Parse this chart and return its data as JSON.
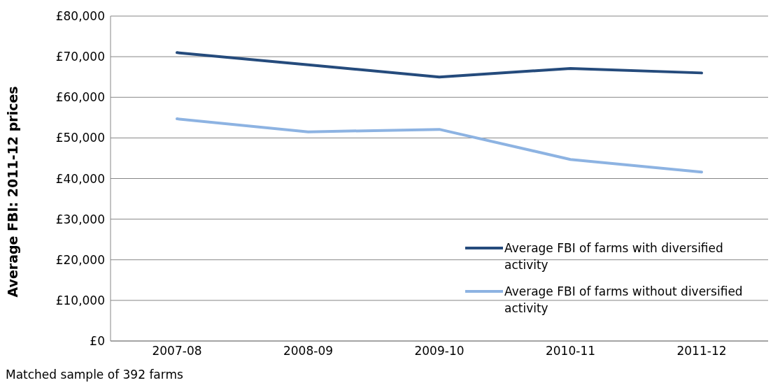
{
  "chart_data": {
    "type": "line",
    "ylabel": "Average FBI: 2011-12 prices",
    "categories": [
      "2007-08",
      "2008-09",
      "2009-10",
      "2010-11",
      "2011-12"
    ],
    "series": [
      {
        "name": "Average FBI of farms with diversified activity",
        "color": "#254b7c",
        "values": [
          71000,
          68000,
          65000,
          67100,
          66000
        ]
      },
      {
        "name": "Average FBI of farms without diversified activity",
        "color": "#8db3e2",
        "values": [
          54700,
          51500,
          52100,
          44700,
          41600
        ]
      }
    ],
    "ylim": [
      0,
      80000
    ],
    "yticks": [
      {
        "value": 0,
        "label": "£0"
      },
      {
        "value": 10000,
        "label": "£10,000"
      },
      {
        "value": 20000,
        "label": "£20,000"
      },
      {
        "value": 30000,
        "label": "£30,000"
      },
      {
        "value": 40000,
        "label": "£40,000"
      },
      {
        "value": 50000,
        "label": "£50,000"
      },
      {
        "value": 60000,
        "label": "£60,000"
      },
      {
        "value": 70000,
        "label": "£70,000"
      },
      {
        "value": 80000,
        "label": "£80,000"
      }
    ],
    "grid": "y",
    "legend": "bottom right",
    "marker": "none",
    "line_style": "solid",
    "annotations": [
      "Matched sample of 392 farms"
    ]
  }
}
